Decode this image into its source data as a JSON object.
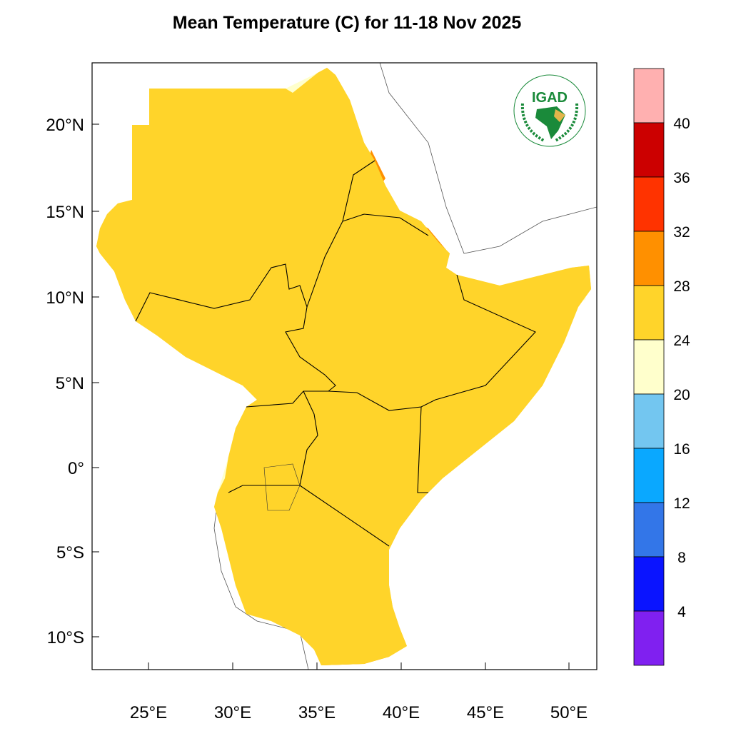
{
  "title": "Mean Temperature (C) for 11-18 Nov 2025",
  "logo": {
    "text": "IGAD",
    "ring_top": "INTERGOVERNMENTAL AUTHORITY ON DEVELOPMENT",
    "ring_bottom": "AUTORITE INTERGOUVERNEMENTALE POUR LE DEVELOPPEMENT"
  },
  "axes": {
    "lat_labels": [
      "20°N",
      "15°N",
      "10°N",
      "5°N",
      "0°",
      "5°S",
      "10°S"
    ],
    "lon_labels": [
      "25°E",
      "30°E",
      "35°E",
      "40°E",
      "45°E",
      "50°E"
    ]
  },
  "colorbar": {
    "levels": [
      "40",
      "36",
      "32",
      "28",
      "24",
      "20",
      "16",
      "12",
      "8",
      "4"
    ],
    "colors": [
      "#ffb0b0",
      "#cc0000",
      "#ff3300",
      "#ff9000",
      "#ffd42a",
      "#ffffcc",
      "#73c6f0",
      "#0aa8ff",
      "#3376e8",
      "#0a14ff",
      "#8020f0"
    ]
  }
}
